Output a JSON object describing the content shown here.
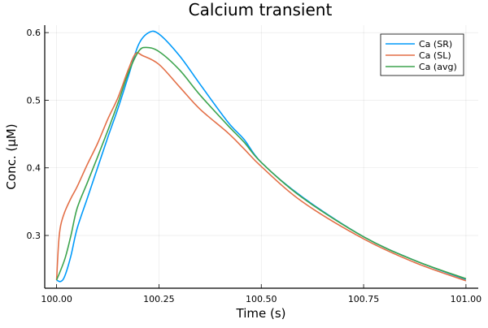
{
  "chart_data": {
    "type": "line",
    "title": "Calcium transient",
    "xlabel": "Time (s)",
    "ylabel": "Conc. (μM)",
    "xlim": [
      99.971,
      101.03
    ],
    "ylim": [
      0.222,
      0.611
    ],
    "xticks": [
      100.0,
      100.25,
      100.5,
      100.75,
      101.0
    ],
    "xtick_labels": [
      "100.00",
      "100.25",
      "100.50",
      "100.75",
      "101.00"
    ],
    "yticks": [
      0.3,
      0.4,
      0.5,
      0.6
    ],
    "ytick_labels": [
      "0.3",
      "0.4",
      "0.5",
      "0.6"
    ],
    "grid": true,
    "legend_position": "top-right",
    "series": [
      {
        "name": "Ca (SR)",
        "color": "#009AFA",
        "x": [
          100.0,
          100.01,
          100.02,
          100.035,
          100.05,
          100.075,
          100.1,
          100.125,
          100.15,
          100.175,
          100.2,
          100.225,
          100.25,
          100.3,
          100.35,
          100.418,
          100.458,
          100.5,
          100.6,
          100.75,
          100.875,
          101.0
        ],
        "y": [
          0.234,
          0.232,
          0.24,
          0.27,
          0.31,
          0.355,
          0.4,
          0.445,
          0.488,
          0.535,
          0.582,
          0.6,
          0.598,
          0.566,
          0.524,
          0.468,
          0.442,
          0.408,
          0.357,
          0.298,
          0.263,
          0.235
        ]
      },
      {
        "name": "Ca (SL)",
        "color": "#E36F47",
        "x": [
          100.0,
          100.005,
          100.01,
          100.02,
          100.035,
          100.05,
          100.075,
          100.1,
          100.125,
          100.15,
          100.175,
          100.193,
          100.21,
          100.25,
          100.3,
          100.35,
          100.418,
          100.458,
          100.5,
          100.6,
          100.75,
          100.875,
          101.0
        ],
        "y": [
          0.234,
          0.29,
          0.315,
          0.335,
          0.355,
          0.372,
          0.405,
          0.436,
          0.472,
          0.504,
          0.545,
          0.569,
          0.566,
          0.553,
          0.52,
          0.487,
          0.452,
          0.428,
          0.402,
          0.35,
          0.295,
          0.26,
          0.233
        ]
      },
      {
        "name": "Ca (avg)",
        "color": "#3DA44E",
        "x": [
          100.0,
          100.02,
          100.035,
          100.05,
          100.075,
          100.1,
          100.125,
          100.15,
          100.175,
          100.2,
          100.219,
          100.25,
          100.3,
          100.35,
          100.418,
          100.458,
          100.5,
          100.6,
          100.75,
          100.875,
          101.0
        ],
        "y": [
          0.234,
          0.265,
          0.3,
          0.34,
          0.378,
          0.416,
          0.455,
          0.496,
          0.54,
          0.572,
          0.578,
          0.572,
          0.545,
          0.508,
          0.463,
          0.438,
          0.408,
          0.356,
          0.298,
          0.263,
          0.236
        ]
      }
    ]
  }
}
